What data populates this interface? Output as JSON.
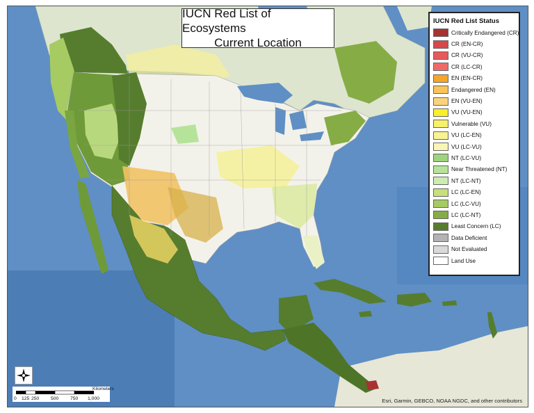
{
  "map": {
    "title_line1": "IUCN Red List of Ecosystems",
    "title_line2": "Current Location",
    "credits": "Esri, Garmin, GEBCO, NOAA NGDC, and other contributors"
  },
  "legend": {
    "title": "IUCN Red List Status",
    "items": [
      {
        "label": "Critically Endangered (CR)",
        "color": "#a83232"
      },
      {
        "label": "CR (EN-CR)",
        "color": "#d9474a"
      },
      {
        "label": "CR (VU-CR)",
        "color": "#e8595b"
      },
      {
        "label": "CR (LC-CR)",
        "color": "#f06a6a"
      },
      {
        "label": "EN (EN-CR)",
        "color": "#f5a62a"
      },
      {
        "label": "Endangered (EN)",
        "color": "#f9c45a"
      },
      {
        "label": "EN (VU-EN)",
        "color": "#fbd37c"
      },
      {
        "label": "VU (VU-EN)",
        "color": "#f9f02a"
      },
      {
        "label": "Vulnerable (VU)",
        "color": "#f6f06a"
      },
      {
        "label": "VU (LC-EN)",
        "color": "#f8f393"
      },
      {
        "label": "VU (LC-VU)",
        "color": "#faf6b3"
      },
      {
        "label": "NT (LC-VU)",
        "color": "#9fd47e"
      },
      {
        "label": "Near Threatened (NT)",
        "color": "#b6e39a"
      },
      {
        "label": "NT (LC-NT)",
        "color": "#cdecb2"
      },
      {
        "label": "LC (LC-EN)",
        "color": "#c7e07a"
      },
      {
        "label": "LC (LC-VU)",
        "color": "#a6cb62"
      },
      {
        "label": "LC (LC-NT)",
        "color": "#86ac46"
      },
      {
        "label": "Least Concern (LC)",
        "color": "#567d2e"
      },
      {
        "label": "Data Deficient",
        "color": "#b3b3b3"
      },
      {
        "label": "Not Evaluated",
        "color": "#d9d9d9"
      },
      {
        "label": "Land Use",
        "color": "#ffffff"
      }
    ]
  },
  "scale": {
    "unit": "Kilometers",
    "ticks": [
      "0",
      "125",
      "250",
      "500",
      "750",
      "1,000"
    ]
  },
  "colors": {
    "ocean": "#5f8fc4",
    "deep_ocean": "#4d7db5",
    "land_other": "#e9ece0",
    "land_north": "#dfe7d0"
  }
}
